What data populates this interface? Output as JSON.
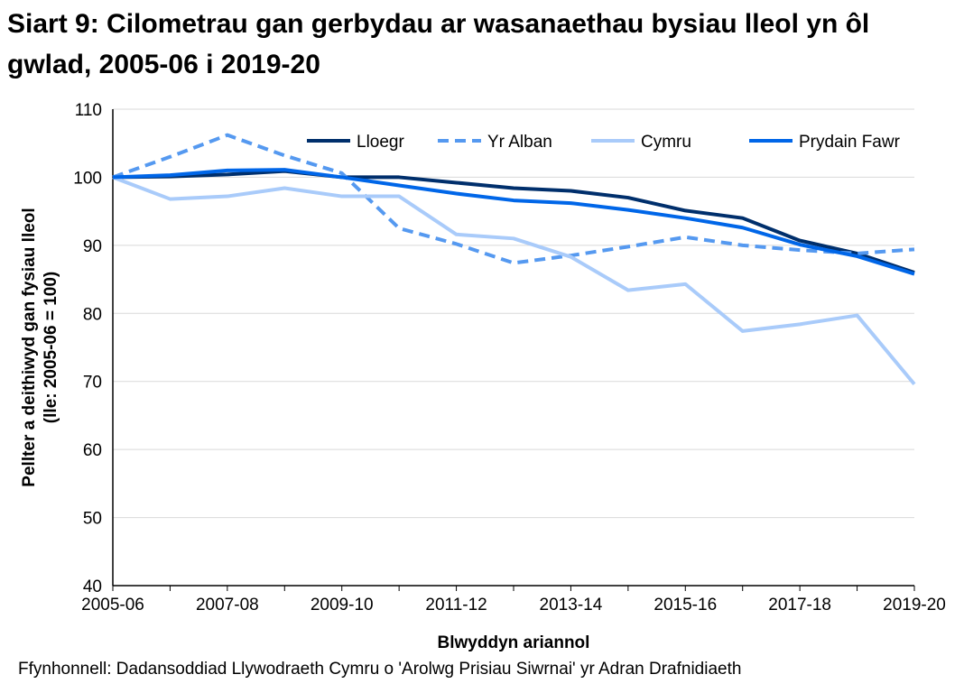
{
  "chart_data": {
    "type": "line",
    "title": "Siart 9: Cilometrau gan gerbydau ar wasanaethau bysiau lleol yn ôl gwlad, 2005-06 i 2019-20",
    "xlabel": "Blwyddyn ariannol",
    "ylabel": "Pellter a deithiwyd gan fysiau lleol",
    "ylabel2": "(lle: 2005-06 = 100)",
    "ylim": [
      40,
      110
    ],
    "yticks": [
      40,
      50,
      60,
      70,
      80,
      90,
      100,
      110
    ],
    "categories": [
      "2005-06",
      "2006-07",
      "2007-08",
      "2008-09",
      "2009-10",
      "2010-11",
      "2011-12",
      "2012-13",
      "2013-14",
      "2014-15",
      "2015-16",
      "2016-17",
      "2017-18",
      "2018-19",
      "2019-20"
    ],
    "xtick_labels": [
      "2005-06",
      "2007-08",
      "2009-10",
      "2011-12",
      "2013-14",
      "2015-16",
      "2017-18",
      "2019-20"
    ],
    "grid": true,
    "legend": "top-right",
    "series": [
      {
        "name": "Lloegr",
        "color": "#002f6c",
        "dash": false,
        "values": [
          100,
          100.1,
          100.4,
          100.9,
          100,
          100,
          99.2,
          98.4,
          98.0,
          97.0,
          95.1,
          94.0,
          90.7,
          88.8,
          86.0
        ]
      },
      {
        "name": "Yr Alban",
        "color": "#5599f0",
        "dash": true,
        "values": [
          100,
          103.0,
          106.2,
          103.2,
          100.6,
          92.5,
          90.2,
          87.4,
          88.5,
          89.8,
          91.2,
          90.0,
          89.3,
          88.8,
          89.4
        ]
      },
      {
        "name": "Cymru",
        "color": "#a9cbfa",
        "dash": false,
        "values": [
          100,
          96.8,
          97.2,
          98.4,
          97.2,
          97.2,
          91.6,
          91.0,
          88.3,
          83.4,
          84.3,
          77.4,
          78.4,
          79.7,
          69.6
        ]
      },
      {
        "name": "Prydain Fawr",
        "color": "#0066e8",
        "dash": false,
        "values": [
          100,
          100.3,
          101.0,
          101.1,
          100,
          98.8,
          97.6,
          96.6,
          96.2,
          95.2,
          94.0,
          92.6,
          90.1,
          88.4,
          85.8
        ]
      }
    ]
  },
  "source": "Ffynhonnell: Dadansoddiad Llywodraeth Cymru o 'Arolwg Prisiau Siwrnai' yr Adran Drafnidiaeth"
}
